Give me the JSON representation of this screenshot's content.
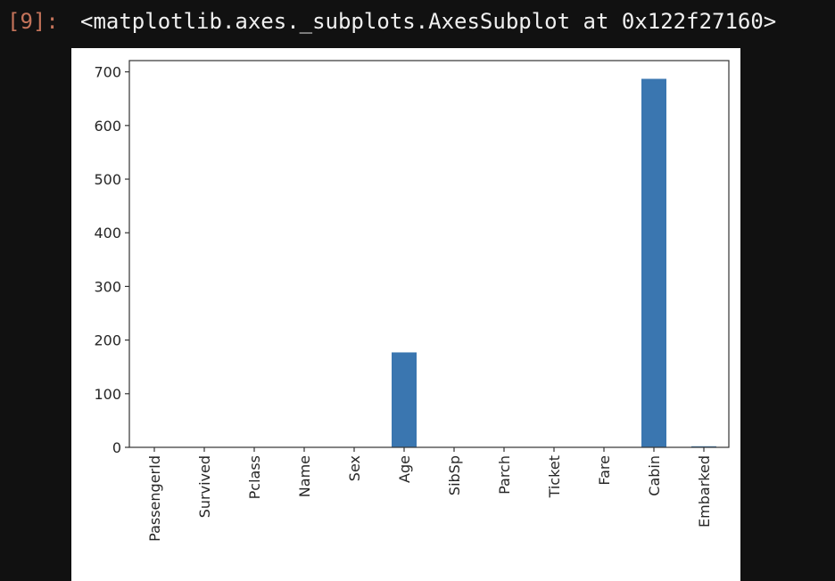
{
  "output": {
    "prompt": "[9]:",
    "text": "<matplotlib.axes._subplots.AxesSubplot at 0x122f27160>"
  },
  "chart_data": {
    "type": "bar",
    "categories": [
      "PassengerId",
      "Survived",
      "Pclass",
      "Name",
      "Sex",
      "Age",
      "SibSp",
      "Parch",
      "Ticket",
      "Fare",
      "Cabin",
      "Embarked"
    ],
    "values": [
      0,
      0,
      0,
      0,
      0,
      177,
      0,
      0,
      0,
      0,
      687,
      2
    ],
    "yticks": [
      0,
      100,
      200,
      300,
      400,
      500,
      600,
      700
    ],
    "ylim": [
      0,
      721
    ],
    "bar_color": "#3a76b0",
    "xlabel_rotation": "vertical",
    "grid": false,
    "legend": "none"
  }
}
